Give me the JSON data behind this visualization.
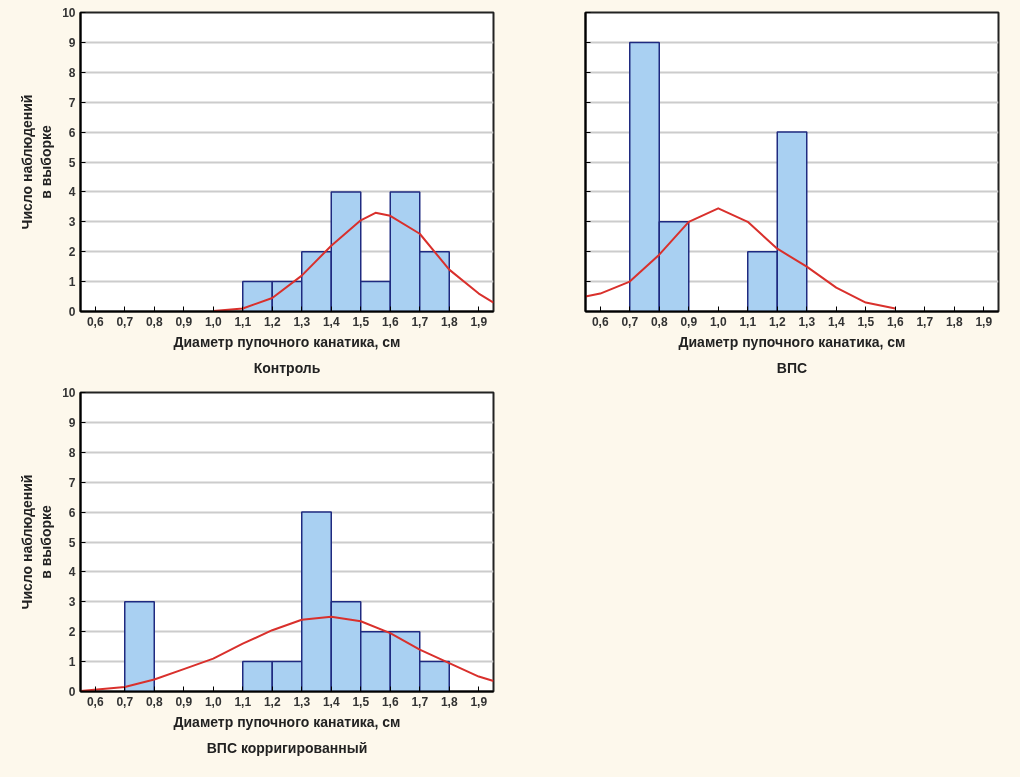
{
  "chart_data": [
    {
      "type": "histogram",
      "title": "Контроль",
      "xlabel": "Диаметр пупочного канатика, см",
      "ylabel": "Число наблюдений\nв выборке",
      "bins": [
        1.1,
        1.2,
        1.3,
        1.4,
        1.5,
        1.6,
        1.7,
        1.8
      ],
      "values": [
        1,
        1,
        2,
        4,
        1,
        4,
        2
      ],
      "color": "#a9d0f2",
      "series": [
        {
          "type": "line",
          "color": "#d9302c",
          "x": [
            1.0,
            1.1,
            1.2,
            1.3,
            1.4,
            1.5,
            1.55,
            1.6,
            1.7,
            1.8,
            1.9,
            1.95
          ],
          "values": [
            0.02,
            0.1,
            0.45,
            1.2,
            2.2,
            3.05,
            3.3,
            3.2,
            2.6,
            1.4,
            0.6,
            0.3
          ]
        }
      ],
      "xlim": [
        0.55,
        1.95
      ],
      "xticks": [
        {
          "value": 0.6,
          "label": "0,6"
        },
        {
          "value": 0.7,
          "label": "0,7"
        },
        {
          "value": 0.8,
          "label": "0,8"
        },
        {
          "value": 0.9,
          "label": "0,9"
        },
        {
          "value": 1.0,
          "label": "1,0"
        },
        {
          "value": 1.1,
          "label": "1,1"
        },
        {
          "value": 1.2,
          "label": "1,2"
        },
        {
          "value": 1.3,
          "label": "1,3"
        },
        {
          "value": 1.4,
          "label": "1,4"
        },
        {
          "value": 1.5,
          "label": "1,5"
        },
        {
          "value": 1.6,
          "label": "1,6"
        },
        {
          "value": 1.7,
          "label": "1,7"
        },
        {
          "value": 1.8,
          "label": "1,8"
        },
        {
          "value": 1.9,
          "label": "1,9"
        }
      ],
      "ylim": [
        0,
        10
      ],
      "yticks": [
        0,
        1,
        2,
        3,
        4,
        5,
        6,
        7,
        8,
        9,
        10
      ],
      "grid": "y"
    },
    {
      "type": "histogram",
      "title": "ВПС",
      "xlabel": "Диаметр пупочного канатика, см",
      "bins": [
        0.7,
        0.8,
        0.9,
        1.0,
        1.1,
        1.2,
        1.3
      ],
      "values": [
        9,
        3,
        0,
        0,
        2,
        6
      ],
      "color": "#a9d0f2",
      "series": [
        {
          "type": "line",
          "color": "#d9302c",
          "x": [
            0.55,
            0.6,
            0.7,
            0.8,
            0.9,
            1.0,
            1.1,
            1.2,
            1.3,
            1.4,
            1.5,
            1.6
          ],
          "values": [
            0.5,
            0.6,
            1.0,
            1.9,
            3.0,
            3.45,
            3.0,
            2.1,
            1.5,
            0.8,
            0.3,
            0.1
          ]
        }
      ],
      "xlim": [
        0.55,
        1.95
      ],
      "xticks": [
        {
          "value": 0.6,
          "label": "0,6"
        },
        {
          "value": 0.7,
          "label": "0,7"
        },
        {
          "value": 0.8,
          "label": "0,8"
        },
        {
          "value": 0.9,
          "label": "0,9"
        },
        {
          "value": 1.0,
          "label": "1,0"
        },
        {
          "value": 1.1,
          "label": "1,1"
        },
        {
          "value": 1.2,
          "label": "1,2"
        },
        {
          "value": 1.3,
          "label": "1,3"
        },
        {
          "value": 1.4,
          "label": "1,4"
        },
        {
          "value": 1.5,
          "label": "1,5"
        },
        {
          "value": 1.6,
          "label": "1,6"
        },
        {
          "value": 1.7,
          "label": "1,7"
        },
        {
          "value": 1.8,
          "label": "1,8"
        },
        {
          "value": 1.9,
          "label": "1,9"
        }
      ],
      "ylim": [
        0,
        10
      ],
      "yticks": [
        0,
        1,
        2,
        3,
        4,
        5,
        6,
        7,
        8,
        9,
        10
      ],
      "grid": "y",
      "tick_labels": "x"
    },
    {
      "type": "histogram",
      "title": "ВПС корригированный",
      "xlabel": "Диаметр пупочного канатика, см",
      "ylabel": "Число наблюдений\nв выборке",
      "bins": [
        0.7,
        0.8,
        0.9,
        1.0,
        1.1,
        1.2,
        1.3,
        1.4,
        1.5,
        1.6,
        1.7,
        1.8
      ],
      "values": [
        3,
        0,
        0,
        0,
        1,
        1,
        6,
        3,
        2,
        2,
        1
      ],
      "color": "#a9d0f2",
      "series": [
        {
          "type": "line",
          "color": "#d9302c",
          "x": [
            0.55,
            0.7,
            0.8,
            0.9,
            1.0,
            1.1,
            1.2,
            1.3,
            1.4,
            1.5,
            1.6,
            1.7,
            1.8,
            1.9,
            1.95
          ],
          "values": [
            0.02,
            0.15,
            0.4,
            0.75,
            1.1,
            1.6,
            2.05,
            2.4,
            2.5,
            2.35,
            1.95,
            1.4,
            0.95,
            0.5,
            0.35
          ]
        }
      ],
      "xlim": [
        0.55,
        1.95
      ],
      "xticks": [
        {
          "value": 0.6,
          "label": "0,6"
        },
        {
          "value": 0.7,
          "label": "0,7"
        },
        {
          "value": 0.8,
          "label": "0,8"
        },
        {
          "value": 0.9,
          "label": "0,9"
        },
        {
          "value": 1.0,
          "label": "1,0"
        },
        {
          "value": 1.1,
          "label": "1,1"
        },
        {
          "value": 1.2,
          "label": "1,2"
        },
        {
          "value": 1.3,
          "label": "1,3"
        },
        {
          "value": 1.4,
          "label": "1,4"
        },
        {
          "value": 1.5,
          "label": "1,5"
        },
        {
          "value": 1.6,
          "label": "1,6"
        },
        {
          "value": 1.7,
          "label": "1,7"
        },
        {
          "value": 1.8,
          "label": "1,8"
        },
        {
          "value": 1.9,
          "label": "1,9"
        }
      ],
      "ylim": [
        0,
        10
      ],
      "yticks": [
        0,
        1,
        2,
        3,
        4,
        5,
        6,
        7,
        8,
        9,
        10
      ],
      "grid": "y"
    }
  ]
}
